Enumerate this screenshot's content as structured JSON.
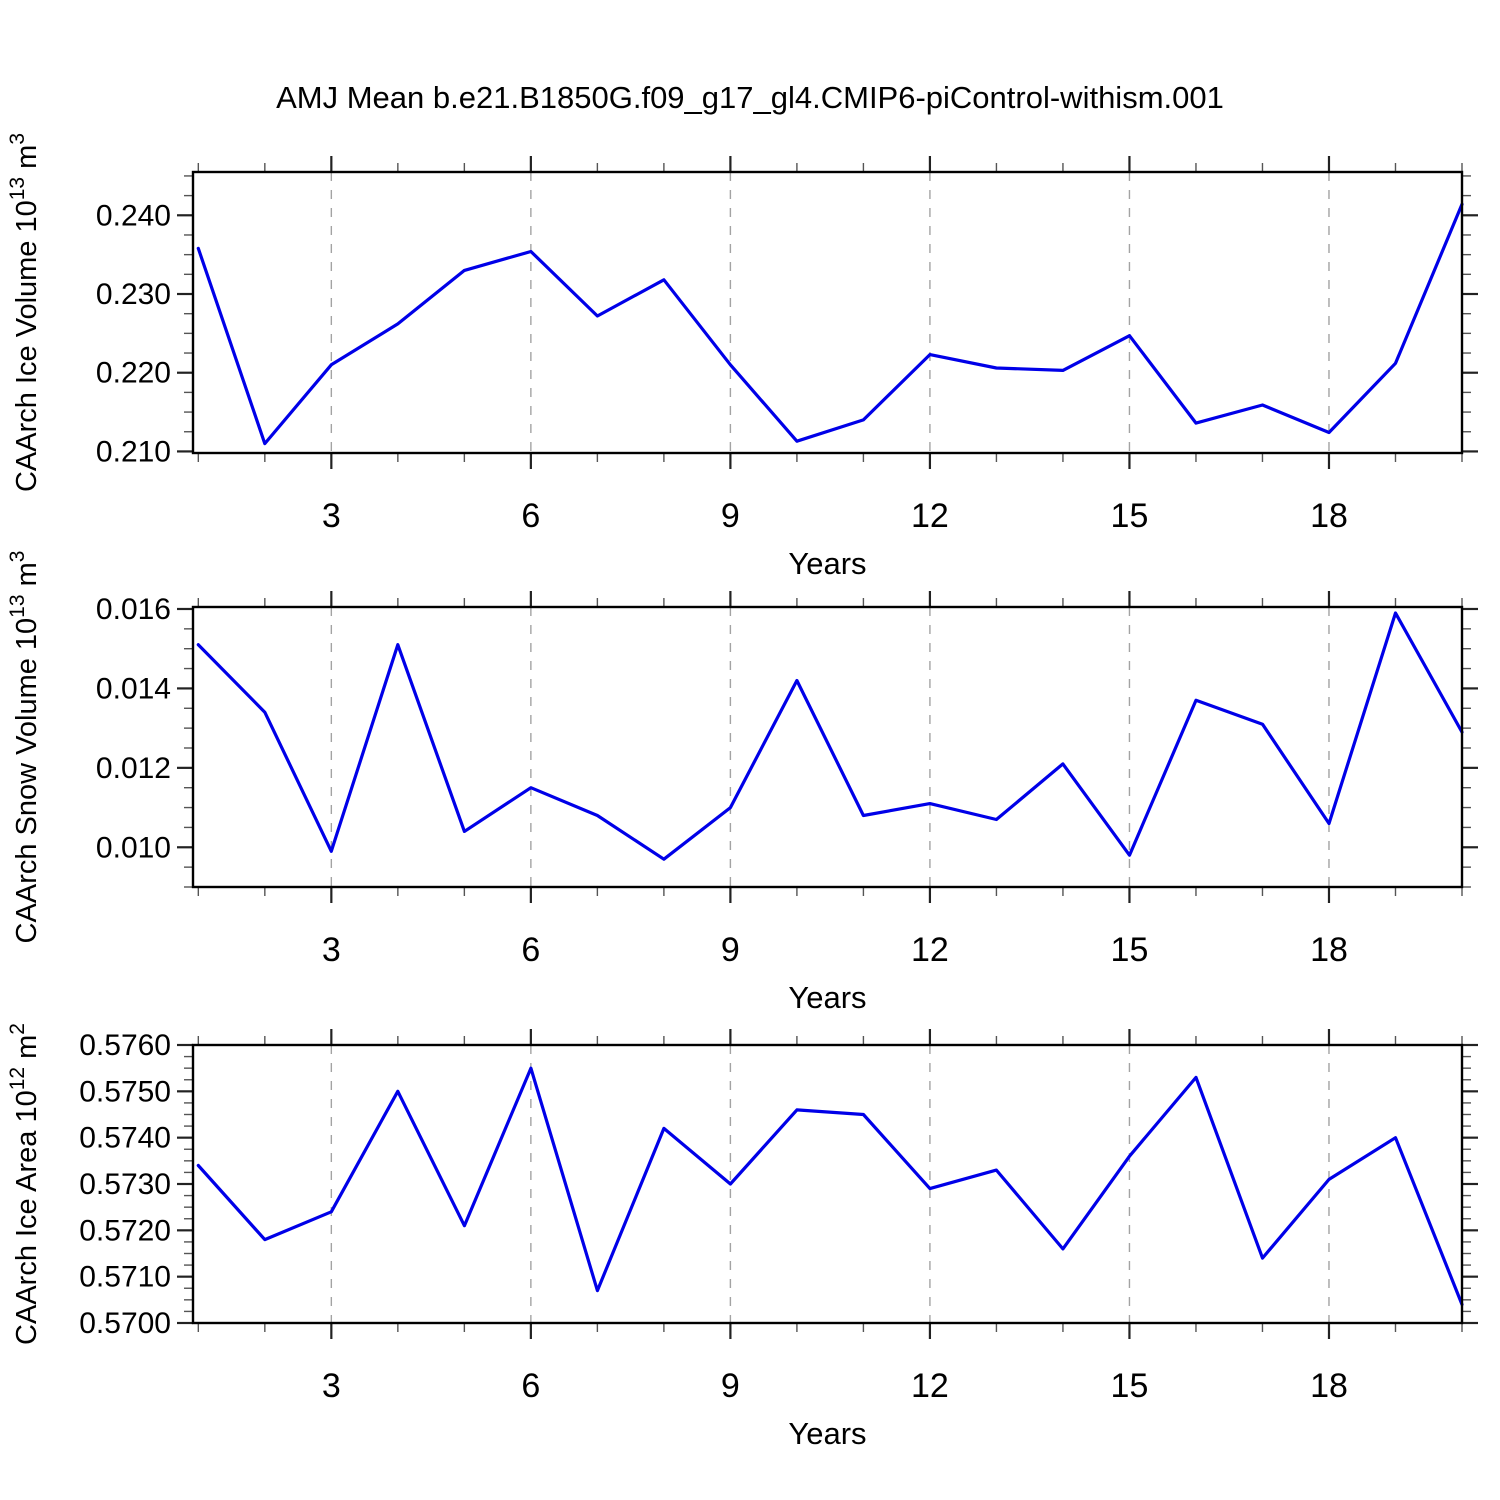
{
  "title": "AMJ Mean b.e21.B1850G.f09_g17_gl4.CMIP6-piControl-withism.001",
  "colors": {
    "line": "#0000e8",
    "grid": "#a3a3a3",
    "frame": "#000000",
    "tick_major": "#222222",
    "tick_minor": "#555555",
    "text": "#000000"
  },
  "chart_data": [
    {
      "type": "line",
      "xlabel": "Years",
      "ylabel": {
        "prefix": "CAArch Ice Volume 10",
        "sup1": "13",
        "mid": " m",
        "sup2": "3"
      },
      "x": [
        1,
        2,
        3,
        4,
        5,
        6,
        7,
        8,
        9,
        10,
        11,
        12,
        13,
        14,
        15,
        16,
        17,
        18,
        19,
        20
      ],
      "values": [
        0.2358,
        0.211,
        0.221,
        0.2262,
        0.233,
        0.2354,
        0.2272,
        0.2318,
        0.221,
        0.2113,
        0.214,
        0.2223,
        0.2206,
        0.2203,
        0.2247,
        0.2136,
        0.2159,
        0.2124,
        0.2212,
        0.2414
      ],
      "xlim": [
        0.92,
        20.0
      ],
      "ylim": [
        0.2098,
        0.2455
      ],
      "xticks_major": [
        3,
        6,
        9,
        12,
        15,
        18
      ],
      "xtick_labels": [
        "3",
        "6",
        "9",
        "12",
        "15",
        "18"
      ],
      "xminor_step": 1,
      "yticks_major": [
        0.21,
        0.22,
        0.23,
        0.24
      ],
      "ytick_labels": [
        "0.210",
        "0.220",
        "0.230",
        "0.240"
      ],
      "yminor_step": 0.0025,
      "grid": "vertical-dashed-at-x-majors",
      "legend": "none"
    },
    {
      "type": "line",
      "xlabel": "Years",
      "ylabel": {
        "prefix": "CAArch Snow Volume 10",
        "sup1": "13",
        "mid": " m",
        "sup2": "3"
      },
      "x": [
        1,
        2,
        3,
        4,
        5,
        6,
        7,
        8,
        9,
        10,
        11,
        12,
        13,
        14,
        15,
        16,
        17,
        18,
        19,
        20
      ],
      "values": [
        0.0151,
        0.0134,
        0.0099,
        0.0151,
        0.0104,
        0.0115,
        0.0108,
        0.0097,
        0.011,
        0.0142,
        0.0108,
        0.0111,
        0.0107,
        0.0121,
        0.0098,
        0.0137,
        0.0131,
        0.0106,
        0.0159,
        0.0129
      ],
      "xlim": [
        0.92,
        20.0
      ],
      "ylim": [
        0.009,
        0.01605
      ],
      "xticks_major": [
        3,
        6,
        9,
        12,
        15,
        18
      ],
      "xtick_labels": [
        "3",
        "6",
        "9",
        "12",
        "15",
        "18"
      ],
      "xminor_step": 1,
      "yticks_major": [
        0.01,
        0.012,
        0.014,
        0.016
      ],
      "ytick_labels": [
        "0.010",
        "0.012",
        "0.014",
        "0.016"
      ],
      "yminor_step": 0.0005,
      "grid": "vertical-dashed-at-x-majors",
      "legend": "none"
    },
    {
      "type": "line",
      "xlabel": "Years",
      "ylabel": {
        "prefix": "CAArch Ice Area 10",
        "sup1": "12",
        "mid": " m",
        "sup2": "2"
      },
      "x": [
        1,
        2,
        3,
        4,
        5,
        6,
        7,
        8,
        9,
        10,
        11,
        12,
        13,
        14,
        15,
        16,
        17,
        18,
        19,
        20
      ],
      "values": [
        0.5734,
        0.5718,
        0.5724,
        0.575,
        0.5721,
        0.5755,
        0.5707,
        0.5742,
        0.573,
        0.5746,
        0.5745,
        0.5729,
        0.5733,
        0.5716,
        0.5736,
        0.5753,
        0.5714,
        0.5731,
        0.574,
        0.5704
      ],
      "xlim": [
        0.92,
        20.0
      ],
      "ylim": [
        0.57,
        0.576
      ],
      "xticks_major": [
        3,
        6,
        9,
        12,
        15,
        18
      ],
      "xtick_labels": [
        "3",
        "6",
        "9",
        "12",
        "15",
        "18"
      ],
      "xminor_step": 1,
      "yticks_major": [
        0.57,
        0.571,
        0.572,
        0.573,
        0.574,
        0.575,
        0.576
      ],
      "ytick_labels": [
        "0.5700",
        "0.5710",
        "0.5720",
        "0.5730",
        "0.5740",
        "0.5750",
        "0.5760"
      ],
      "yminor_step": 0.00025,
      "grid": "vertical-dashed-at-x-majors",
      "legend": "none"
    }
  ]
}
